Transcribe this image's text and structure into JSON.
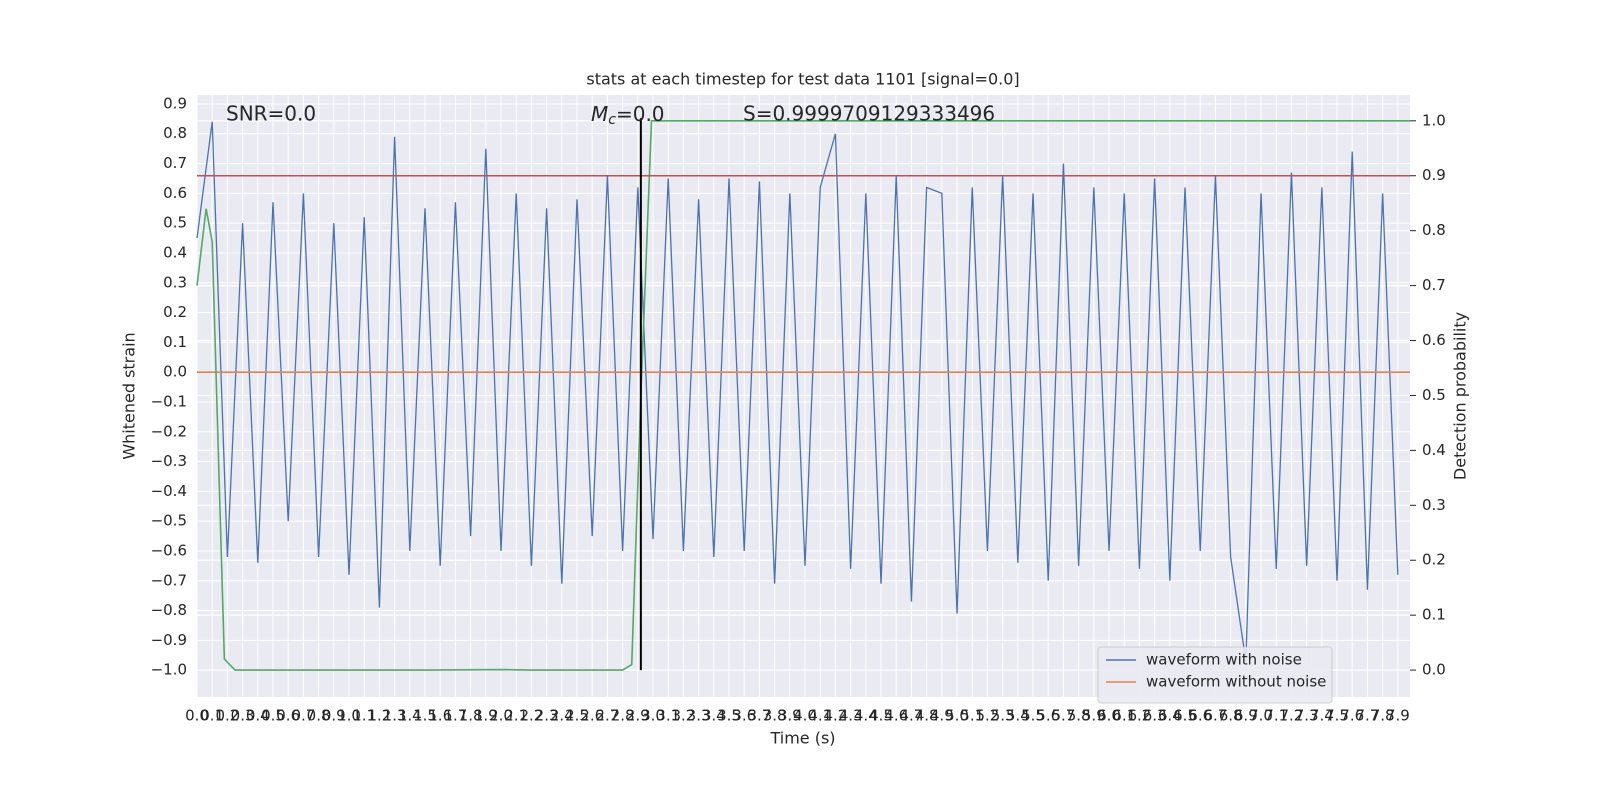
{
  "chart_data": {
    "type": "line",
    "title": "stats at each timestep for test data 1101 [signal=0.0]",
    "xlabel": "Time (s)",
    "ylabel": "Whitened strain",
    "y2label": "Detection probability",
    "annotations": {
      "snr": "SNR=0.0",
      "mc": {
        "symbol": "M",
        "subscript": "c",
        "text": "=0.0"
      },
      "s": "S=0.9999709129333496"
    },
    "xlim": [
      0,
      7.98
    ],
    "ylim": [
      -1.09,
      0.93
    ],
    "y2lim": [
      -0.049,
      1.047
    ],
    "xticks": [
      {
        "value": 0,
        "label": "0.0"
      },
      0.1,
      0.2,
      0.3,
      0.4,
      0.5,
      0.6,
      0.7,
      0.8,
      0.9,
      {
        "value": 1,
        "label": "1.0"
      },
      1.1,
      1.2,
      1.3,
      1.4,
      1.5,
      1.6,
      1.7,
      1.8,
      1.9,
      {
        "value": 2,
        "label": "2.0"
      },
      2.1,
      2.2,
      2.3,
      2.4,
      2.5,
      2.6,
      2.7,
      2.8,
      2.9,
      {
        "value": 3,
        "label": "3.0"
      },
      3.1,
      3.2,
      3.3,
      3.4,
      3.5,
      3.6,
      3.7,
      3.8,
      3.9,
      {
        "value": 4,
        "label": "4.0"
      },
      4.1,
      4.2,
      4.3,
      4.4,
      4.5,
      4.6,
      4.7,
      4.8,
      4.9,
      {
        "value": 5,
        "label": "5.0"
      },
      5.1,
      5.2,
      5.3,
      5.4,
      5.5,
      5.6,
      5.7,
      5.8,
      5.9,
      {
        "value": 6,
        "label": "6.0"
      },
      6.1,
      6.2,
      6.3,
      6.4,
      6.5,
      6.6,
      6.7,
      6.8,
      6.9,
      {
        "value": 7,
        "label": "7.0"
      },
      7.1,
      7.2,
      7.3,
      7.4,
      7.5,
      7.6,
      7.7,
      7.8,
      7.9
    ],
    "yticks": [
      {
        "value": -1,
        "label": "−1.0"
      },
      {
        "value": -0.9,
        "label": "−0.9"
      },
      {
        "value": -0.8,
        "label": "−0.8"
      },
      {
        "value": -0.7,
        "label": "−0.7"
      },
      {
        "value": -0.6,
        "label": "−0.6"
      },
      {
        "value": -0.5,
        "label": "−0.5"
      },
      {
        "value": -0.4,
        "label": "−0.4"
      },
      {
        "value": -0.3,
        "label": "−0.3"
      },
      {
        "value": -0.2,
        "label": "−0.2"
      },
      {
        "value": -0.1,
        "label": "−0.1"
      },
      {
        "value": 0,
        "label": "0.0"
      },
      0.1,
      0.2,
      0.3,
      0.4,
      0.5,
      0.6,
      0.7,
      0.8,
      0.9
    ],
    "y2ticks": [
      {
        "value": 0,
        "label": "0.0"
      },
      0.1,
      0.2,
      0.3,
      0.4,
      0.5,
      0.6,
      0.7,
      0.8,
      0.9,
      {
        "value": 1,
        "label": "1.0"
      }
    ],
    "grid": true,
    "legend": "lower right",
    "series": [
      {
        "name": "waveform with noise",
        "color": "#4c72b0",
        "x": [
          0,
          0.1,
          0.2,
          0.3,
          0.4,
          0.5,
          0.6,
          0.7,
          0.8,
          0.9,
          1,
          1.1,
          1.2,
          1.3,
          1.4,
          1.5,
          1.6,
          1.7,
          1.8,
          1.9,
          2,
          2.1,
          2.2,
          2.3,
          2.4,
          2.5,
          2.6,
          2.7,
          2.8,
          2.9,
          3,
          3.1,
          3.2,
          3.3,
          3.4,
          3.5,
          3.6,
          3.7,
          3.8,
          3.9,
          4,
          4.1,
          4.2,
          4.3,
          4.4,
          4.5,
          4.6,
          4.7,
          4.8,
          4.9,
          5,
          5.1,
          5.2,
          5.3,
          5.4,
          5.5,
          5.6,
          5.7,
          5.8,
          5.9,
          6,
          6.1,
          6.2,
          6.3,
          6.4,
          6.5,
          6.6,
          6.7,
          6.8,
          6.9,
          7,
          7.1,
          7.2,
          7.3,
          7.4,
          7.5,
          7.6,
          7.7,
          7.8,
          7.9
        ],
        "values": [
          0.45,
          0.84,
          -0.62,
          0.5,
          -0.64,
          0.57,
          -0.5,
          0.6,
          -0.62,
          0.5,
          -0.68,
          0.52,
          -0.79,
          0.79,
          -0.6,
          0.55,
          -0.65,
          0.57,
          -0.55,
          0.75,
          -0.6,
          0.6,
          -0.65,
          0.55,
          -0.71,
          0.58,
          -0.55,
          0.66,
          -0.6,
          0.62,
          -0.56,
          0.65,
          -0.6,
          0.58,
          -0.62,
          0.65,
          -0.6,
          0.64,
          -0.71,
          0.6,
          -0.65,
          0.62,
          0.8,
          -0.66,
          0.6,
          -0.71,
          0.66,
          -0.77,
          0.62,
          0.6,
          -0.81,
          0.62,
          -0.6,
          0.66,
          -0.64,
          0.6,
          -0.7,
          0.7,
          -0.65,
          0.62,
          -0.6,
          0.6,
          -0.66,
          0.65,
          -0.7,
          0.62,
          -0.6,
          0.66,
          -0.62,
          -0.97,
          0.6,
          -0.66,
          0.67,
          -0.65,
          0.62,
          -0.7,
          0.74,
          -0.73,
          0.6,
          -0.68
        ]
      },
      {
        "name": "waveform without noise",
        "color": "#dd8452",
        "x": [
          0,
          7.98
        ],
        "values": [
          0,
          0
        ]
      },
      {
        "color": "#55a868",
        "axis": "y2",
        "x": [
          0,
          0.06,
          0.1,
          0.18,
          0.25,
          1.5,
          2.0,
          2.2,
          2.8,
          2.86,
          2.92,
          2.99,
          7.98
        ],
        "values": [
          0.7,
          0.84,
          0.78,
          0.02,
          0.0,
          0.0,
          0.001,
          0.0,
          0.0,
          0.01,
          0.5,
          1.0,
          1.0
        ]
      }
    ],
    "threshold": {
      "value": 0.9,
      "axis": "y2",
      "color": "#c44e52"
    },
    "vline": {
      "x": 2.92,
      "y2": [
        0,
        1.005
      ],
      "color": "#000000"
    }
  }
}
